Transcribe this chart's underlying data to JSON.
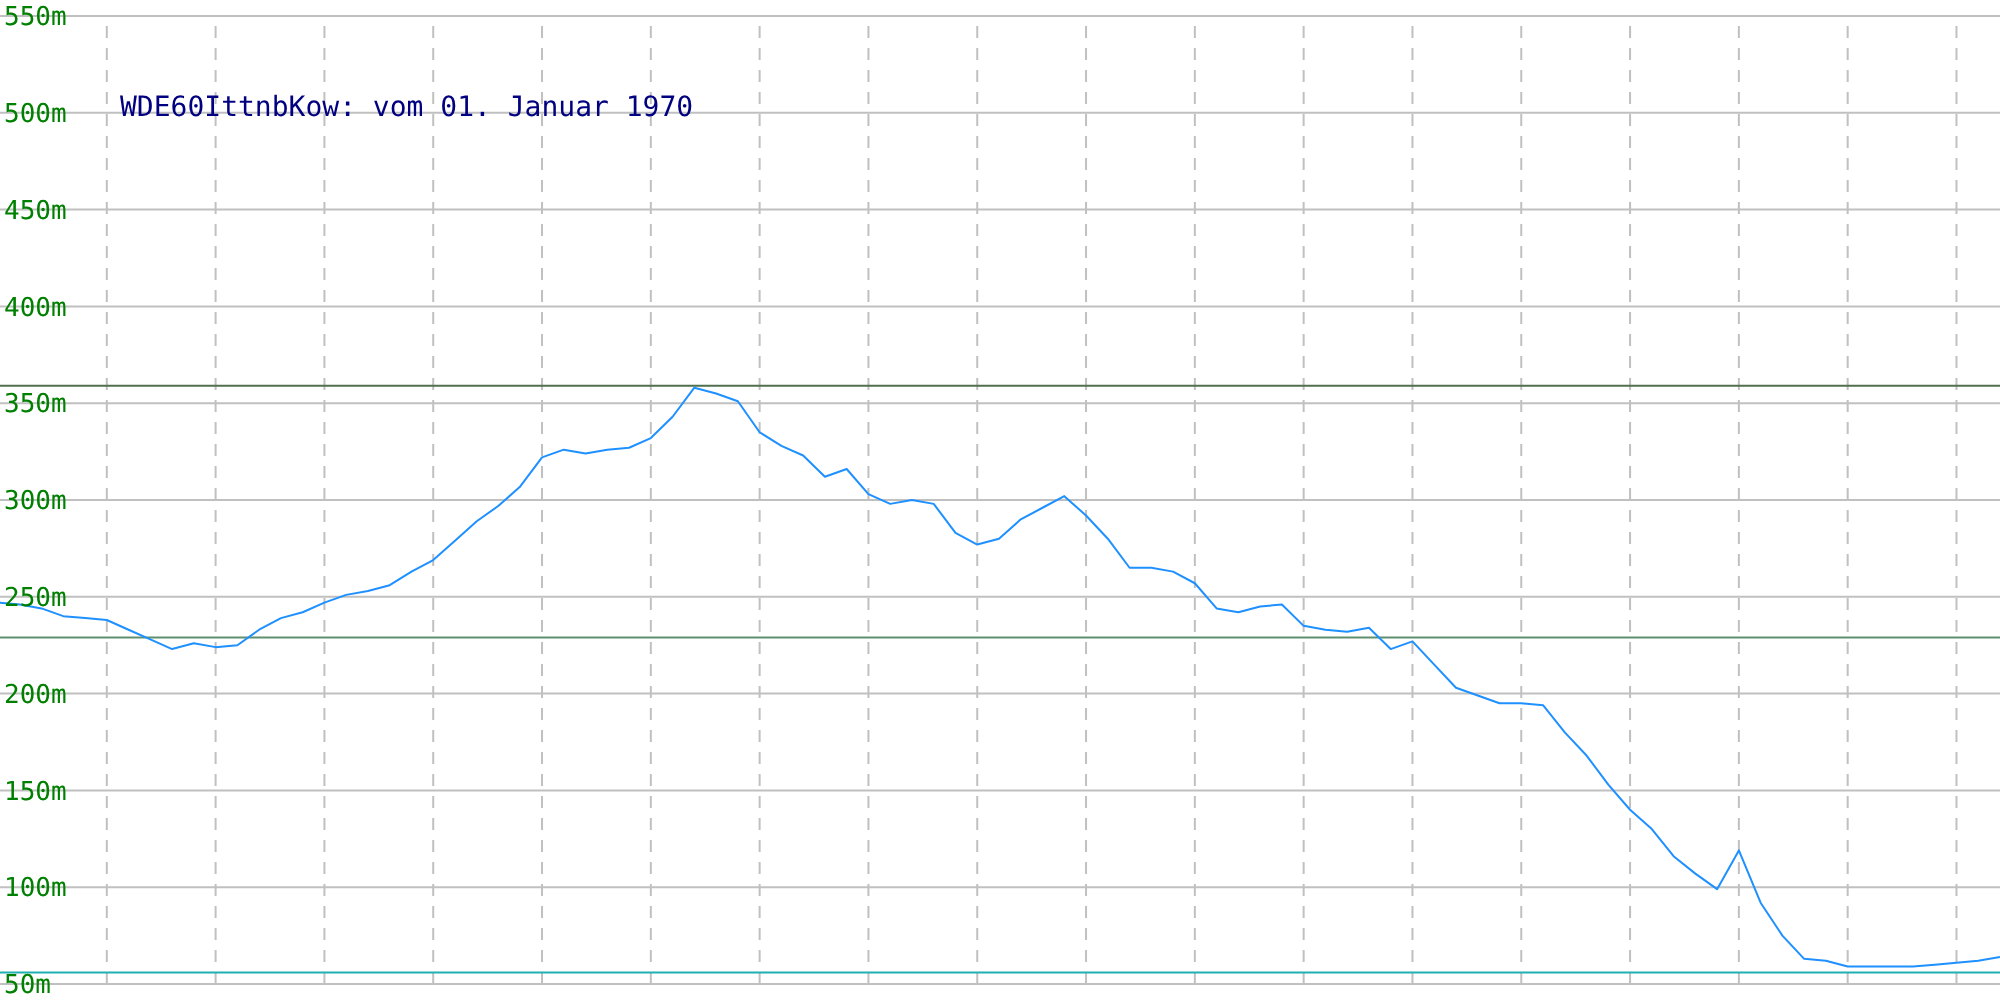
{
  "chart_data": {
    "type": "line",
    "title": "WDE60IttnbKow: vom 01. Januar 1970",
    "categories": [
      null,
      null,
      null,
      null,
      null,
      null,
      null,
      null,
      null,
      null,
      null,
      null,
      null,
      null,
      null,
      null,
      null,
      null,
      null,
      null,
      null,
      null,
      null,
      null,
      null,
      null,
      null,
      null,
      null,
      null,
      null,
      null,
      null,
      null,
      null,
      null,
      null,
      null,
      null,
      null,
      null,
      null,
      null,
      null,
      null,
      null,
      null,
      null,
      null,
      null,
      null,
      null,
      null,
      null,
      null,
      null,
      null,
      null,
      null,
      null,
      null,
      null,
      null,
      null,
      null,
      null,
      null,
      null,
      null,
      null,
      null,
      null,
      null,
      null,
      null,
      null,
      null,
      null,
      null,
      null,
      null,
      null,
      null,
      null,
      null,
      null,
      null,
      null,
      null,
      null,
      null,
      null,
      null
    ],
    "series": [
      {
        "color": "#1e90ff",
        "values": [
          247,
          246,
          244,
          240,
          239,
          238,
          233,
          228,
          223,
          226,
          224,
          225,
          233,
          239,
          242,
          247,
          251,
          253,
          256,
          263,
          269,
          279,
          289,
          297,
          307,
          322,
          326,
          324,
          326,
          327,
          332,
          343,
          358,
          355,
          351,
          335,
          328,
          323,
          312,
          316,
          303,
          298,
          300,
          298,
          283,
          277,
          280,
          290,
          296,
          302,
          292,
          280,
          265,
          265,
          263,
          257,
          244,
          242,
          245,
          246,
          235,
          233,
          232,
          234,
          223,
          227,
          215,
          203,
          199,
          195,
          195,
          194,
          180,
          168,
          153,
          140,
          130,
          116,
          107,
          99,
          119,
          92,
          75,
          63,
          62,
          59,
          59,
          59,
          59,
          60,
          61,
          62,
          64
        ]
      }
    ],
    "ylim": [
      50,
      550
    ],
    "yticks": [
      {
        "value": 50,
        "label": "50m"
      },
      {
        "value": 100,
        "label": "100m"
      },
      {
        "value": 150,
        "label": "150m"
      },
      {
        "value": 200,
        "label": "200m"
      },
      {
        "value": 250,
        "label": "250m"
      },
      {
        "value": 300,
        "label": "300m"
      },
      {
        "value": 350,
        "label": "350m"
      },
      {
        "value": 400,
        "label": "400m"
      },
      {
        "value": 450,
        "label": "450m"
      },
      {
        "value": 500,
        "label": "500m"
      },
      {
        "value": 550,
        "label": "550m"
      }
    ],
    "grid": true,
    "marker": "none",
    "line_style": "solid",
    "ref_lines": [
      {
        "axis": "y",
        "value": 359,
        "color": "#4f6f4f"
      },
      {
        "axis": "y",
        "value": 229,
        "color": "#5f8f6f"
      },
      {
        "axis": "y",
        "value": 56,
        "color": "#20b0b0"
      }
    ]
  }
}
